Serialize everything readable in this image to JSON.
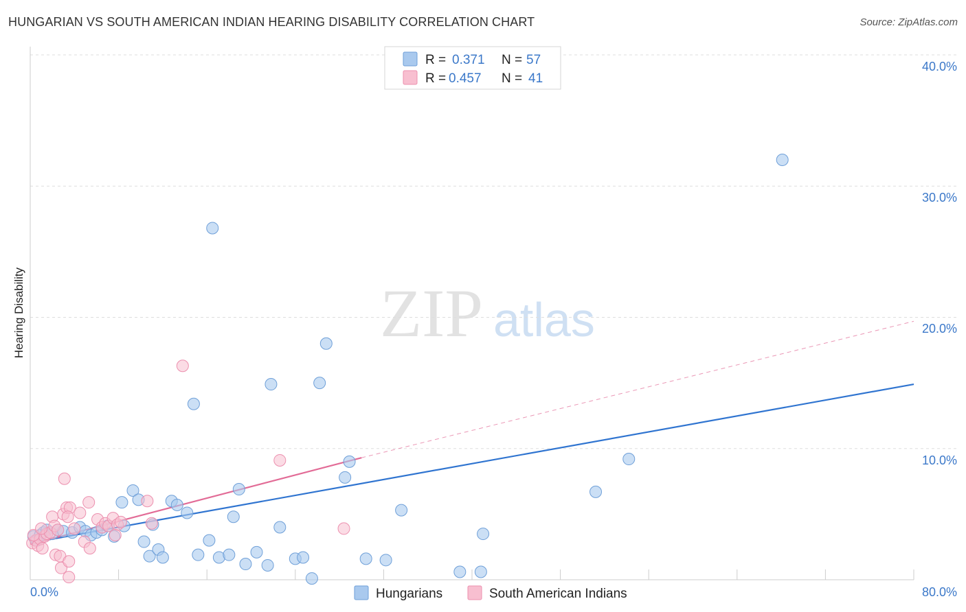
{
  "title": "HUNGARIAN VS SOUTH AMERICAN INDIAN HEARING DISABILITY CORRELATION CHART",
  "source": "Source: ZipAtlas.com",
  "watermark": {
    "zip": "ZIP",
    "atlas": "atlas"
  },
  "colors": {
    "blue_fill": "#a9c9ee",
    "blue_stroke": "#6e9fd8",
    "blue_line": "#2f74d0",
    "pink_fill": "#f8bfd0",
    "pink_stroke": "#ec8fae",
    "pink_line": "#e26b96",
    "tick_text": "#3b78c9",
    "grid": "#dddddd"
  },
  "legend_top": {
    "rows": [
      {
        "r_label": "R =",
        "r_value": "0.371",
        "n_label": "N =",
        "n_value": "57"
      },
      {
        "r_label": "R =",
        "r_value": "0.457",
        "n_label": "N =",
        "n_value": "41"
      }
    ]
  },
  "legend_bottom": [
    "Hungarians",
    "South American Indians"
  ],
  "chart_data": {
    "type": "scatter",
    "title": "HUNGARIAN VS SOUTH AMERICAN INDIAN HEARING DISABILITY CORRELATION CHART",
    "xlabel": "",
    "ylabel": "Hearing Disability",
    "xlim": [
      0,
      80
    ],
    "ylim": [
      0,
      40
    ],
    "x_tick_labels": [
      "0.0%",
      "80.0%"
    ],
    "y_ticks": [
      10,
      20,
      30,
      40
    ],
    "y_tick_labels": [
      "10.0%",
      "20.0%",
      "30.0%",
      "40.0%"
    ],
    "grid": true,
    "series": [
      {
        "name": "Hungarians",
        "R": 0.371,
        "N": 57,
        "trend": {
          "x0": 0,
          "y0": 2.8,
          "x1": 80,
          "y1": 14.9
        },
        "points": [
          [
            0.3,
            3.3
          ],
          [
            0.6,
            3.0
          ],
          [
            0.9,
            3.4
          ],
          [
            1.2,
            3.6
          ],
          [
            1.5,
            3.8
          ],
          [
            2.0,
            3.5
          ],
          [
            2.5,
            3.8
          ],
          [
            3.0,
            3.7
          ],
          [
            3.8,
            3.6
          ],
          [
            4.5,
            4.0
          ],
          [
            5.0,
            3.7
          ],
          [
            5.5,
            3.4
          ],
          [
            6.0,
            3.6
          ],
          [
            6.5,
            3.8
          ],
          [
            7.0,
            4.1
          ],
          [
            7.6,
            3.3
          ],
          [
            8.5,
            4.1
          ],
          [
            8.3,
            5.9
          ],
          [
            9.3,
            6.8
          ],
          [
            9.8,
            6.1
          ],
          [
            10.3,
            2.9
          ],
          [
            10.8,
            1.8
          ],
          [
            11.1,
            4.2
          ],
          [
            11.6,
            2.3
          ],
          [
            12.0,
            1.7
          ],
          [
            12.8,
            6.0
          ],
          [
            13.3,
            5.7
          ],
          [
            14.2,
            5.1
          ],
          [
            14.8,
            13.4
          ],
          [
            15.2,
            1.9
          ],
          [
            16.2,
            3.0
          ],
          [
            16.5,
            26.8
          ],
          [
            17.1,
            1.7
          ],
          [
            18.0,
            1.9
          ],
          [
            18.4,
            4.8
          ],
          [
            18.9,
            6.9
          ],
          [
            19.5,
            1.2
          ],
          [
            20.5,
            2.1
          ],
          [
            21.5,
            1.1
          ],
          [
            21.8,
            14.9
          ],
          [
            22.6,
            4.0
          ],
          [
            24.0,
            1.6
          ],
          [
            24.7,
            1.7
          ],
          [
            25.5,
            0.1
          ],
          [
            26.2,
            15.0
          ],
          [
            26.8,
            18.0
          ],
          [
            28.5,
            7.8
          ],
          [
            28.9,
            9.0
          ],
          [
            30.4,
            1.6
          ],
          [
            32.2,
            1.5
          ],
          [
            33.6,
            5.3
          ],
          [
            38.9,
            0.6
          ],
          [
            40.8,
            0.6
          ],
          [
            41.0,
            3.5
          ],
          [
            51.2,
            6.7
          ],
          [
            54.2,
            9.2
          ],
          [
            68.1,
            32.0
          ]
        ]
      },
      {
        "name": "South American Indians",
        "R": 0.457,
        "N": 41,
        "trend": {
          "x0": 0,
          "y0": 2.7,
          "x1": 30,
          "y1": 9.3
        },
        "trend_extension": {
          "x0": 30,
          "y0": 9.3,
          "x1": 80,
          "y1": 19.7
        },
        "points": [
          [
            0.2,
            2.8
          ],
          [
            0.5,
            3.0
          ],
          [
            0.7,
            2.6
          ],
          [
            0.9,
            3.1
          ],
          [
            1.1,
            2.4
          ],
          [
            1.3,
            3.3
          ],
          [
            1.5,
            3.5
          ],
          [
            1.8,
            3.6
          ],
          [
            2.0,
            4.8
          ],
          [
            2.2,
            4.1
          ],
          [
            2.5,
            3.8
          ],
          [
            2.3,
            1.9
          ],
          [
            2.7,
            1.8
          ],
          [
            2.8,
            0.9
          ],
          [
            3.0,
            5.0
          ],
          [
            3.3,
            5.5
          ],
          [
            3.1,
            7.7
          ],
          [
            3.5,
            1.4
          ],
          [
            3.6,
            5.5
          ],
          [
            3.4,
            4.8
          ],
          [
            3.5,
            0.2
          ],
          [
            4.0,
            3.9
          ],
          [
            4.5,
            5.1
          ],
          [
            4.9,
            2.9
          ],
          [
            5.3,
            5.9
          ],
          [
            5.4,
            2.4
          ],
          [
            6.1,
            4.6
          ],
          [
            6.5,
            4.0
          ],
          [
            6.8,
            4.3
          ],
          [
            7.1,
            4.1
          ],
          [
            7.5,
            4.7
          ],
          [
            7.9,
            4.2
          ],
          [
            7.7,
            3.4
          ],
          [
            8.2,
            4.4
          ],
          [
            10.6,
            6.0
          ],
          [
            11.0,
            4.3
          ],
          [
            13.8,
            16.3
          ],
          [
            22.6,
            9.1
          ],
          [
            28.4,
            3.9
          ],
          [
            0.3,
            3.4
          ],
          [
            1.0,
            3.9
          ]
        ]
      }
    ]
  }
}
